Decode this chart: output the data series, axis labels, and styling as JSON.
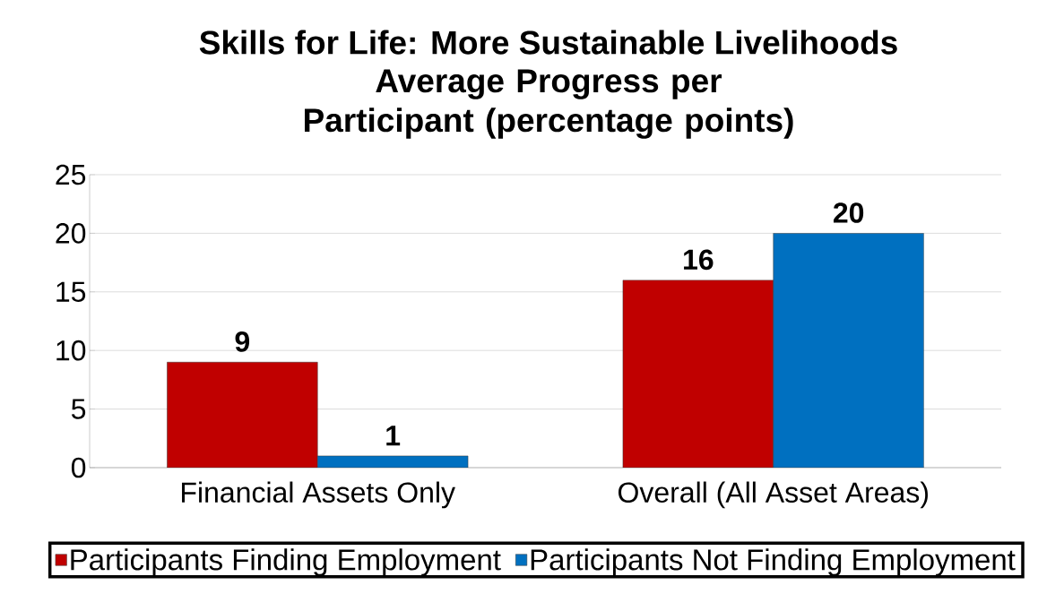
{
  "chart_data": {
    "type": "bar",
    "title": "Skills for Life: More Sustainable Livelihoods",
    "subtitle": "Average Progress per Participant (percentage points)",
    "categories": [
      "Financial Assets Only",
      "Overall (All Asset Areas)"
    ],
    "series": [
      {
        "name": "Participants Finding Employment",
        "color": "#c00000",
        "values": [
          9,
          16
        ]
      },
      {
        "name": "Participants Not Finding Employment",
        "color": "#0070c0",
        "values": [
          1,
          20
        ]
      }
    ],
    "ylim": [
      0,
      25
    ],
    "yticks": [
      0,
      5,
      10,
      15,
      20,
      25
    ],
    "grid": "y",
    "legend": "bottom",
    "data_labels": true
  }
}
